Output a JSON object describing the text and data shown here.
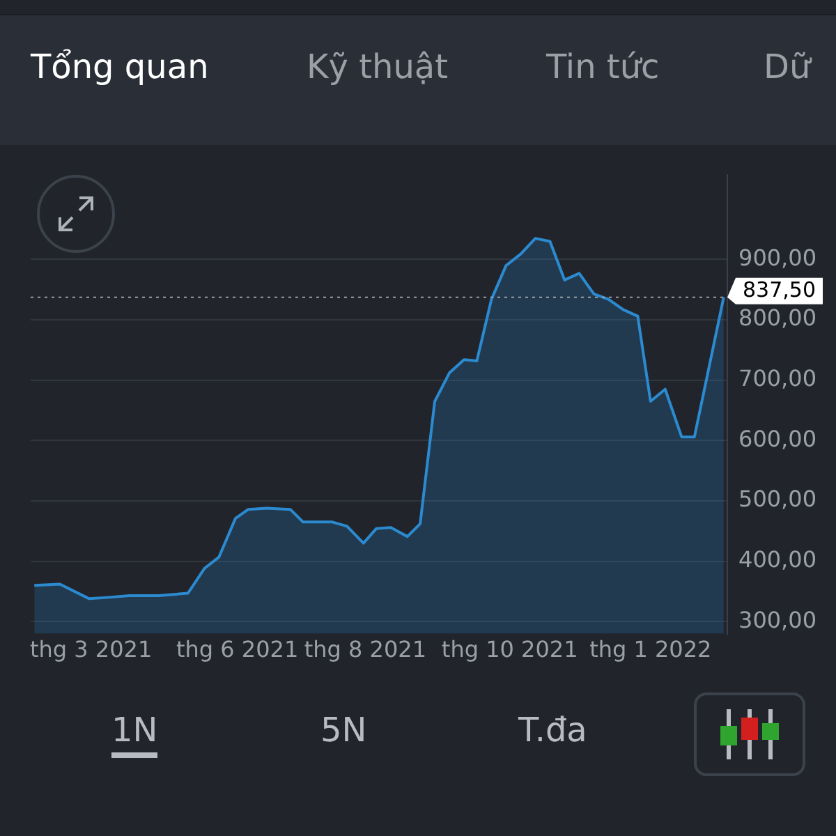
{
  "chart_data": {
    "type": "area",
    "annotations": [
      "Tổng quan",
      "Kỹ thuật",
      "Tin tức",
      "Dữ",
      "1N",
      "5N",
      "T.đa"
    ],
    "xlim": [
      "2021-01-27",
      "2022-02-12"
    ],
    "xticks": [
      {
        "value": "2021-03-01",
        "label": "thg 3 2021"
      },
      {
        "value": "2021-05-20",
        "label": "thg 6 2021"
      },
      {
        "value": "2021-07-29",
        "label": "thg 8 2021"
      },
      {
        "value": "2021-10-16",
        "label": "thg 10 2021"
      },
      {
        "value": "2022-01-01",
        "label": "thg 1 2022"
      }
    ],
    "ylim": [
      280,
      1040
    ],
    "yticks": [
      {
        "value": 300,
        "label": "300,00"
      },
      {
        "value": 400,
        "label": "400,00"
      },
      {
        "value": 500,
        "label": "500,00"
      },
      {
        "value": 600,
        "label": "600,00"
      },
      {
        "value": 700,
        "label": "700,00"
      },
      {
        "value": 800,
        "label": "800,00"
      },
      {
        "value": 900,
        "label": "900,00"
      }
    ],
    "grid": "y",
    "legend": false,
    "marker": "none",
    "ref_lines": [
      {
        "axis": "y",
        "value": 837.5,
        "label": "837,50",
        "color": "#9aa0a6",
        "line_style": "dotted"
      }
    ],
    "x": [
      "2021-01-29",
      "2021-02-12",
      "2021-02-28",
      "2021-03-10",
      "2021-03-22",
      "2021-04-07",
      "2021-04-23",
      "2021-05-02",
      "2021-05-10",
      "2021-05-19",
      "2021-05-26",
      "2021-06-05",
      "2021-06-18",
      "2021-06-25",
      "2021-07-11",
      "2021-07-19",
      "2021-07-28",
      "2021-08-04",
      "2021-08-12",
      "2021-08-21",
      "2021-08-28",
      "2021-09-05",
      "2021-09-13",
      "2021-09-21",
      "2021-09-28",
      "2021-10-06",
      "2021-10-14",
      "2021-10-22",
      "2021-10-30",
      "2021-11-07",
      "2021-11-15",
      "2021-11-23",
      "2021-12-01",
      "2021-12-09",
      "2021-12-17",
      "2021-12-25",
      "2022-01-01",
      "2022-01-09",
      "2022-01-18",
      "2022-01-25",
      "2022-02-10"
    ],
    "series": [
      {
        "color": "#2b8ad0",
        "values": [
          360,
          362,
          338,
          340,
          343,
          343,
          347,
          388,
          407,
          471,
          486,
          488,
          486,
          465,
          465,
          458,
          430,
          454,
          456,
          441,
          462,
          665,
          712,
          734,
          732,
          834,
          890,
          909,
          935,
          930,
          866,
          877,
          843,
          834,
          817,
          806,
          665,
          685,
          606,
          606,
          837.5
        ]
      }
    ]
  }
}
